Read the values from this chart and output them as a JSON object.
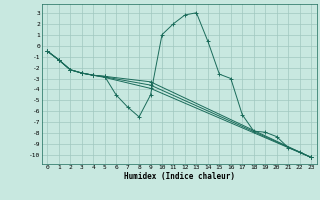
{
  "xlabel": "Humidex (Indice chaleur)",
  "bg_color": "#c8e8e0",
  "grid_color": "#a0c8c0",
  "line_color": "#1a6b5a",
  "xlim": [
    -0.5,
    23.5
  ],
  "ylim": [
    -10.8,
    3.8
  ],
  "xticks": [
    0,
    1,
    2,
    3,
    4,
    5,
    6,
    7,
    8,
    9,
    10,
    11,
    12,
    13,
    14,
    15,
    16,
    17,
    18,
    19,
    20,
    21,
    22,
    23
  ],
  "yticks": [
    3,
    2,
    1,
    0,
    -1,
    -2,
    -3,
    -4,
    -5,
    -6,
    -7,
    -8,
    -9,
    -10
  ],
  "series": [
    {
      "x": [
        0,
        1,
        2,
        3,
        4,
        5,
        6,
        7,
        8,
        9,
        10,
        11,
        12,
        13,
        14,
        15,
        16,
        17,
        18,
        19,
        20,
        21,
        22,
        23
      ],
      "y": [
        -0.5,
        -1.3,
        -2.2,
        -2.5,
        -2.7,
        -2.8,
        -4.5,
        -5.6,
        -6.5,
        -4.5,
        1.0,
        2.0,
        2.8,
        3.0,
        0.4,
        -2.6,
        -3.0,
        -6.3,
        -7.8,
        -7.9,
        -8.3,
        -9.3,
        -9.7,
        -10.2
      ]
    },
    {
      "x": [
        0,
        1,
        2,
        3,
        4,
        5,
        9,
        23
      ],
      "y": [
        -0.5,
        -1.3,
        -2.2,
        -2.5,
        -2.7,
        -2.8,
        -3.3,
        -10.2
      ]
    },
    {
      "x": [
        0,
        1,
        2,
        3,
        4,
        5,
        9,
        23
      ],
      "y": [
        -0.5,
        -1.3,
        -2.2,
        -2.5,
        -2.7,
        -2.85,
        -3.6,
        -10.2
      ]
    },
    {
      "x": [
        0,
        1,
        2,
        3,
        4,
        5,
        9,
        23
      ],
      "y": [
        -0.5,
        -1.3,
        -2.2,
        -2.5,
        -2.7,
        -2.9,
        -3.9,
        -10.2
      ]
    }
  ]
}
